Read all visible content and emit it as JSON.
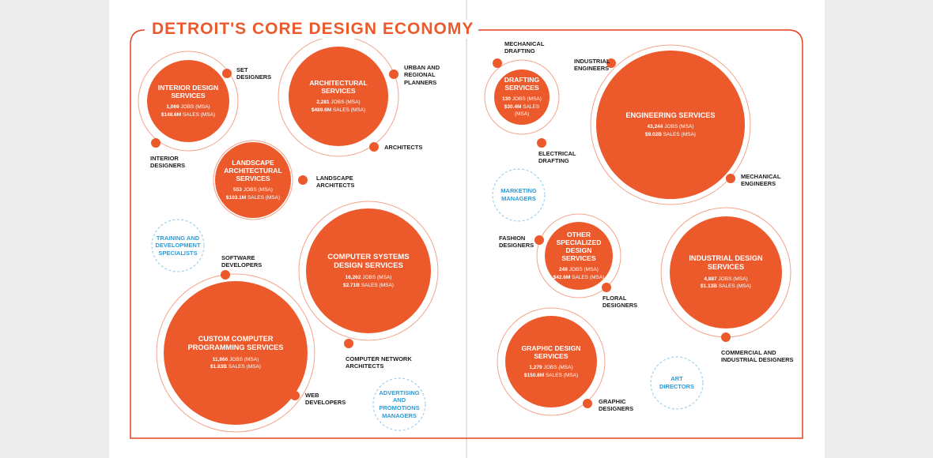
{
  "heading": "DETROIT'S CORE DESIGN ECONOMY",
  "colors": {
    "accent": "#ec5a2c",
    "ring": "#f3a38a",
    "frame": "#e8401c",
    "gap": "#2d9bd7",
    "gap_ring": "#9ed0ee"
  },
  "sectors": [
    {
      "id": "interior-design",
      "name": [
        "INTERIOR DESIGN",
        "SERVICES"
      ],
      "jobs": "1,069",
      "sales": "$148.6M"
    },
    {
      "id": "architectural",
      "name": [
        "ARCHITECTURAL",
        "SERVICES"
      ],
      "jobs": "2,281",
      "sales": "$489.6M"
    },
    {
      "id": "landscape-architectural",
      "name": [
        "LANDSCAPE",
        "ARCHITECTURAL",
        "SERVICES"
      ],
      "jobs": "553",
      "sales": "$103.1M"
    },
    {
      "id": "computer-systems-design",
      "name": [
        "COMPUTER SYSTEMS",
        "DESIGN SERVICES"
      ],
      "jobs": "16,262",
      "sales": "$2.71B"
    },
    {
      "id": "custom-computer-programming",
      "name": [
        "CUSTOM COMPUTER",
        "PROGRAMMING SERVICES"
      ],
      "jobs": "11,866",
      "sales": "$1.83B"
    },
    {
      "id": "drafting",
      "name": [
        "DRAFTING",
        "SERVICES"
      ],
      "jobs": "130",
      "sales": "$30.4M"
    },
    {
      "id": "engineering",
      "name": [
        "ENGINEERING SERVICES"
      ],
      "jobs": "43,244",
      "sales": "$9.02B"
    },
    {
      "id": "other-specialized-design",
      "name": [
        "OTHER",
        "SPECIALIZED",
        "DESIGN SERVICES"
      ],
      "jobs": "248",
      "sales": "$42.6M"
    },
    {
      "id": "industrial-design",
      "name": [
        "INDUSTRIAL DESIGN",
        "SERVICES"
      ],
      "jobs": "4,887",
      "sales": "$1.13B"
    },
    {
      "id": "graphic-design",
      "name": [
        "GRAPHIC DESIGN",
        "SERVICES"
      ],
      "jobs": "1,279",
      "sales": "$150.8M"
    }
  ],
  "stat_labels": {
    "jobs": "JOBS (MSA)",
    "sales": "SALES (MSA)"
  },
  "occupations": [
    {
      "id": "set-designers",
      "lines": [
        "SET",
        "DESIGNERS"
      ]
    },
    {
      "id": "interior-designers",
      "lines": [
        "INTERIOR",
        "DESIGNERS"
      ]
    },
    {
      "id": "urban-regional-planners",
      "lines": [
        "URBAN AND",
        "REGIONAL",
        "PLANNERS"
      ]
    },
    {
      "id": "architects",
      "lines": [
        "ARCHITECTS"
      ]
    },
    {
      "id": "landscape-architects",
      "lines": [
        "LANDSCAPE",
        "ARCHITECTS"
      ]
    },
    {
      "id": "software-developers",
      "lines": [
        "SOFTWARE",
        "DEVELOPERS"
      ]
    },
    {
      "id": "computer-network-architects",
      "lines": [
        "COMPUTER NETWORK",
        "ARCHITECTS"
      ]
    },
    {
      "id": "web-developers",
      "lines": [
        "WEB",
        "DEVELOPERS"
      ]
    },
    {
      "id": "mechanical-drafting",
      "lines": [
        "MECHANICAL",
        "DRAFTING"
      ]
    },
    {
      "id": "electrical-drafting",
      "lines": [
        "ELECTRICAL",
        "DRAFTING"
      ]
    },
    {
      "id": "industrial-engineers",
      "lines": [
        "INDUSTRIAL",
        "ENGINEERS"
      ]
    },
    {
      "id": "mechanical-engineers",
      "lines": [
        "MECHANICAL",
        "ENGINEERS"
      ]
    },
    {
      "id": "fashion-designers",
      "lines": [
        "FASHION",
        "DESIGNERS"
      ]
    },
    {
      "id": "floral-designers",
      "lines": [
        "FLORAL",
        "DESIGNERS"
      ]
    },
    {
      "id": "commercial-industrial-designers",
      "lines": [
        "COMMERCIAL AND",
        "INDUSTRIAL DESIGNERS"
      ]
    },
    {
      "id": "graphic-designers",
      "lines": [
        "GRAPHIC",
        "DESIGNERS"
      ]
    }
  ],
  "gaps": [
    {
      "id": "training-development-specialists",
      "lines": [
        "TRAINING AND",
        "DEVELOPMENT",
        "SPECIALISTS"
      ]
    },
    {
      "id": "advertising-promotions-managers",
      "lines": [
        "ADVERTISING",
        "AND",
        "PROMOTIONS",
        "MANAGERS"
      ]
    },
    {
      "id": "marketing-managers",
      "lines": [
        "MARKETING",
        "MANAGERS"
      ]
    },
    {
      "id": "art-directors",
      "lines": [
        "ART",
        "DIRECTORS"
      ]
    }
  ]
}
